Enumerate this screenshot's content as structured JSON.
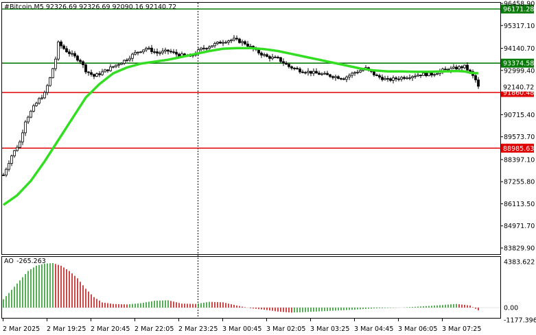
{
  "colors": {
    "background": "#ffffff",
    "candle": "#000000",
    "ma_line": "#33dd22",
    "resistance_green": "#0a7a0a",
    "support_red": "#e00000",
    "ao_up": "#2a9a2a",
    "ao_down": "#c21818"
  },
  "chart_data": [
    {
      "type": "candlestick",
      "header": "#Bitcoin,M5  92326.69 92326.69 92090.16 92140.72",
      "ylim": [
        83829.9,
        96458.9
      ],
      "y_ticks": [
        "96458.90",
        "95317.10",
        "94140.70",
        "92999.40",
        "90715.40",
        "89573.70",
        "88397.10",
        "87255.80",
        "86113.50",
        "84971.70",
        "83829.90"
      ],
      "x_ticks": [
        "2 Mar 2025",
        "2 Mar 19:25",
        "2 Mar 20:45",
        "2 Mar 22:05",
        "2 Mar 23:25",
        "3 Mar 00:45",
        "3 Mar 02:05",
        "3 Mar 03:25",
        "3 Mar 04:45",
        "3 Mar 06:05",
        "3 Mar 07:25"
      ],
      "current_price_label": "92140.72",
      "current_price": 92140.72,
      "levels": [
        {
          "label": "96171.28",
          "value": 96171.28,
          "color": "green"
        },
        {
          "label": "93374.58",
          "value": 93374.58,
          "color": "green"
        },
        {
          "label": "91860.48",
          "value": 91860.48,
          "color": "red"
        },
        {
          "label": "88985.63",
          "value": 88985.63,
          "color": "red"
        }
      ],
      "close_path": [
        [
          0,
          87600
        ],
        [
          3,
          88600
        ],
        [
          6,
          89300
        ],
        [
          8,
          90400
        ],
        [
          11,
          91100
        ],
        [
          13,
          91500
        ],
        [
          15,
          91800
        ],
        [
          17,
          92600
        ],
        [
          19,
          93600
        ],
        [
          20,
          94400
        ],
        [
          23,
          94000
        ],
        [
          26,
          93700
        ],
        [
          28,
          93500
        ],
        [
          30,
          93000
        ],
        [
          33,
          92700
        ],
        [
          36,
          92900
        ],
        [
          40,
          93200
        ],
        [
          44,
          93500
        ],
        [
          48,
          93900
        ],
        [
          52,
          94150
        ],
        [
          56,
          93900
        ],
        [
          60,
          94000
        ],
        [
          64,
          93800
        ],
        [
          68,
          93700
        ],
        [
          72,
          94100
        ],
        [
          76,
          94300
        ],
        [
          80,
          94500
        ],
        [
          84,
          94600
        ],
        [
          88,
          94400
        ],
        [
          92,
          94000
        ],
        [
          96,
          93700
        ],
        [
          100,
          93600
        ],
        [
          104,
          93200
        ],
        [
          108,
          93000
        ],
        [
          112,
          92900
        ],
        [
          116,
          92800
        ],
        [
          120,
          92700
        ],
        [
          124,
          92600
        ],
        [
          128,
          92900
        ],
        [
          132,
          93100
        ],
        [
          136,
          92700
        ],
        [
          140,
          92500
        ],
        [
          144,
          92600
        ],
        [
          148,
          92700
        ],
        [
          152,
          92800
        ],
        [
          156,
          92800
        ],
        [
          160,
          93000
        ],
        [
          164,
          93100
        ],
        [
          168,
          93200
        ],
        [
          170,
          92900
        ],
        [
          172,
          92500
        ],
        [
          173,
          92140.72
        ]
      ],
      "moving_average": [
        [
          0,
          86050
        ],
        [
          5,
          86550
        ],
        [
          10,
          87300
        ],
        [
          15,
          88300
        ],
        [
          20,
          89400
        ],
        [
          25,
          90500
        ],
        [
          30,
          91600
        ],
        [
          35,
          92300
        ],
        [
          40,
          92850
        ],
        [
          45,
          93150
        ],
        [
          50,
          93350
        ],
        [
          55,
          93450
        ],
        [
          60,
          93550
        ],
        [
          65,
          93700
        ],
        [
          70,
          93850
        ],
        [
          75,
          94000
        ],
        [
          80,
          94120
        ],
        [
          85,
          94150
        ],
        [
          90,
          94150
        ],
        [
          95,
          94100
        ],
        [
          100,
          94000
        ],
        [
          105,
          93850
        ],
        [
          110,
          93700
        ],
        [
          115,
          93550
        ],
        [
          120,
          93400
        ],
        [
          125,
          93250
        ],
        [
          130,
          93100
        ],
        [
          135,
          93000
        ],
        [
          140,
          92950
        ],
        [
          145,
          92950
        ],
        [
          150,
          92930
        ],
        [
          155,
          92930
        ],
        [
          160,
          92950
        ],
        [
          165,
          92970
        ],
        [
          168,
          92950
        ],
        [
          170,
          92880
        ],
        [
          173,
          92850
        ]
      ]
    },
    {
      "type": "bar",
      "label": "AO",
      "value_label": "-265.263",
      "ylim": [
        -1177.396,
        4383.622
      ],
      "y_ticks": [
        "4383.622",
        "0.00",
        "-1177.396"
      ],
      "series": [
        {
          "x": [
            0,
            3,
            6,
            9,
            12,
            15,
            18,
            21,
            24,
            27,
            30,
            33,
            36,
            40,
            45,
            50,
            55,
            60,
            65,
            70,
            75,
            80,
            85,
            90,
            95,
            100,
            105,
            110,
            115,
            120,
            125,
            130,
            135,
            140,
            145,
            150,
            155,
            160,
            165,
            170,
            173
          ],
          "values": [
            800,
            1700,
            2600,
            3500,
            4000,
            4200,
            4250,
            4000,
            3500,
            2800,
            1800,
            1000,
            500,
            350,
            300,
            420,
            650,
            700,
            380,
            350,
            550,
            500,
            200,
            -60,
            -200,
            -380,
            -480,
            -430,
            -360,
            -300,
            -240,
            -160,
            -80,
            -40,
            0,
            80,
            160,
            250,
            350,
            200,
            -265.263
          ]
        }
      ]
    }
  ]
}
